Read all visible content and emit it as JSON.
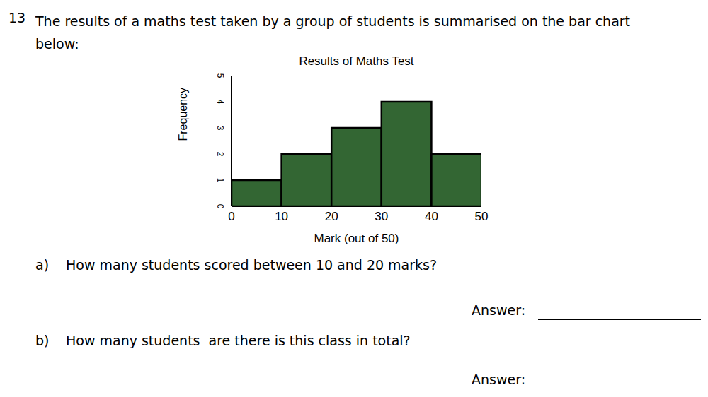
{
  "question": {
    "number": "13",
    "text": "The results of a maths test taken by a group of students is summarised on the bar chart below:",
    "parts": [
      {
        "label": "a)",
        "text": "How many students scored between 10 and 20 marks?",
        "answer_label": "Answer:"
      },
      {
        "label": "b)",
        "text": "How many students  are there is this class in total?",
        "answer_label": "Answer:"
      }
    ]
  },
  "chart_data": {
    "type": "histogram",
    "title": "Results of Maths Test",
    "x_label": "Mark (out of 50)",
    "y_label": "Frequency",
    "bins": [
      0,
      10,
      20,
      30,
      40,
      50
    ],
    "values": [
      1,
      2,
      3,
      4,
      2
    ],
    "color": "#336633",
    "xlim": [
      0,
      50
    ],
    "xticks": [
      0,
      10,
      20,
      30,
      40,
      50
    ],
    "ylim": [
      0,
      5
    ],
    "yticks": [
      0,
      1,
      2,
      3,
      4,
      5
    ],
    "grid": false
  }
}
